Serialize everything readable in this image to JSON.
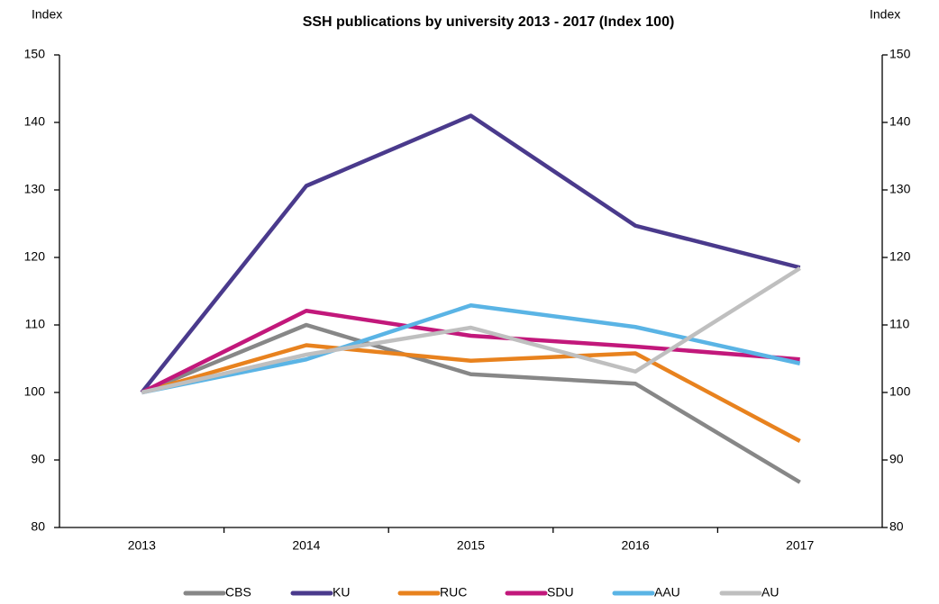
{
  "chart_data": {
    "type": "line",
    "title": "SSH publications by university 2013 - 2017 (Index 100)",
    "y_label": "Index",
    "y2_label": "Index",
    "categories": [
      "2013",
      "2014",
      "2015",
      "2016",
      "2017"
    ],
    "series": [
      {
        "name": "CBS",
        "color": "#878787",
        "values": [
          100,
          110.0,
          102.7,
          101.3,
          86.7
        ]
      },
      {
        "name": "KU",
        "color": "#4a3a8c",
        "values": [
          100,
          130.6,
          141.0,
          124.7,
          118.5
        ]
      },
      {
        "name": "RUC",
        "color": "#e8821e",
        "values": [
          100,
          107.0,
          104.7,
          105.8,
          92.8
        ]
      },
      {
        "name": "SDU",
        "color": "#c2187b",
        "values": [
          100,
          112.1,
          108.4,
          106.8,
          104.9
        ]
      },
      {
        "name": "AAU",
        "color": "#5ab4e5",
        "values": [
          100,
          104.9,
          112.9,
          109.7,
          104.3
        ]
      },
      {
        "name": "AU",
        "color": "#bfbfbf",
        "values": [
          100,
          105.6,
          109.6,
          103.1,
          118.4
        ]
      }
    ],
    "ylim": [
      80,
      150
    ],
    "yticks": [
      80,
      90,
      100,
      110,
      120,
      130,
      140,
      150
    ],
    "y2lim": [
      80,
      150
    ],
    "y2ticks": [
      80,
      90,
      100,
      110,
      120,
      130,
      140,
      150
    ],
    "legend": "bottom"
  }
}
